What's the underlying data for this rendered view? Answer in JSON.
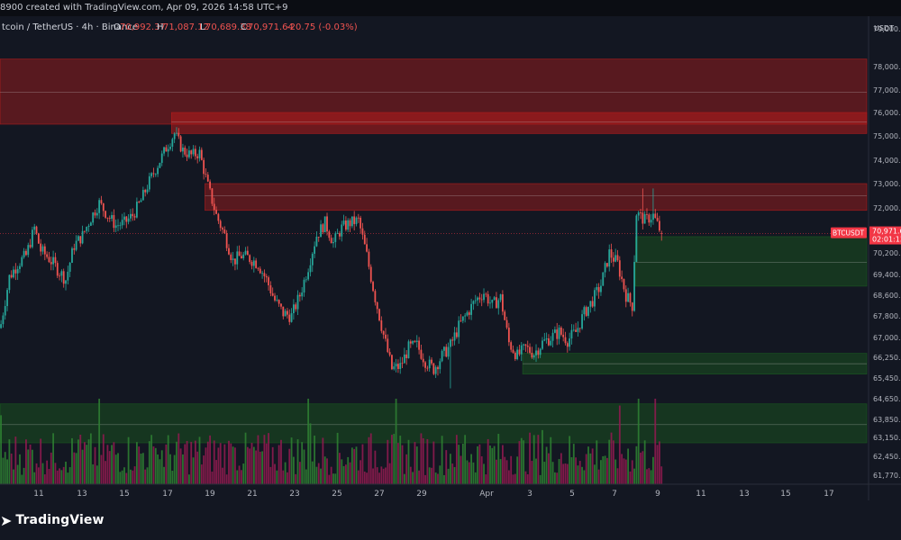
{
  "header": {
    "caption": "8900 created with TradingView.com, Apr 09, 2026 14:58 UTC+9"
  },
  "legend": {
    "symbol": "tcoin / TetherUS · 4h · Binance",
    "open_label": "O",
    "open": "70,992.37",
    "high_label": "H",
    "high": "71,087.12",
    "low_label": "L",
    "low": "70,689.38",
    "close_label": "C",
    "close": "70,971.64",
    "change": "-20.75 (-0.03%)"
  },
  "footer": {
    "brand": "TradingView"
  },
  "colors": {
    "up": "#26a69a",
    "down": "#ef5350",
    "supply_zone": "#b71c1c",
    "demand_zone": "#1b5e20",
    "background": "#131722",
    "price_tag": "#f23645"
  },
  "chart_data": {
    "type": "candlestick",
    "timeframe": "4h",
    "currency_label": "USDT",
    "ylim": [
      61770,
      79600
    ],
    "y_ticks": [
      {
        "label": "79,000.00",
        "value": 79000
      },
      {
        "label": "78,000.00",
        "value": 78000
      },
      {
        "label": "77,000.00",
        "value": 77000
      },
      {
        "label": "76,000.00",
        "value": 76000
      },
      {
        "label": "75,000.00",
        "value": 75000
      },
      {
        "label": "74,000.00",
        "value": 74000
      },
      {
        "label": "73,000.00",
        "value": 73000
      },
      {
        "label": "72,000.00",
        "value": 72000
      },
      {
        "label": "70,200.00",
        "value": 70200
      },
      {
        "label": "69,400.00",
        "value": 69400
      },
      {
        "label": "68,600.00",
        "value": 68600
      },
      {
        "label": "67,800.00",
        "value": 67800
      },
      {
        "label": "67,000.00",
        "value": 67000
      },
      {
        "label": "66,250.00",
        "value": 66250
      },
      {
        "label": "65,450.00",
        "value": 65450
      },
      {
        "label": "64,650.00",
        "value": 64650
      },
      {
        "label": "63,850.00",
        "value": 63850
      },
      {
        "label": "63,150.00",
        "value": 63150
      },
      {
        "label": "62,450.00",
        "value": 62450
      },
      {
        "label": "61,770.00",
        "value": 61770
      }
    ],
    "x_ticks": [
      "11",
      "13",
      "15",
      "17",
      "19",
      "21",
      "23",
      "25",
      "27",
      "29",
      "Apr",
      "3",
      "5",
      "7",
      "9",
      "11",
      "13",
      "15",
      "17"
    ],
    "last_price": {
      "symbol": "BTCUSDT",
      "price": "70,971.64",
      "countdown": "02:01:13",
      "value": 70971.64
    },
    "zones": [
      {
        "kind": "supply",
        "start_bar": 0,
        "top": 78200,
        "bottom": 75500,
        "mid": 76900
      },
      {
        "kind": "supply",
        "start_bar": 82,
        "top": 76000,
        "bottom": 75100,
        "mid": 75600
      },
      {
        "kind": "supply",
        "start_bar": 98,
        "top": 73000,
        "bottom": 71900,
        "mid": 72500
      },
      {
        "kind": "demand",
        "start_bar": 304,
        "top": 70850,
        "bottom": 68950,
        "mid": 69850
      },
      {
        "kind": "demand",
        "start_bar": 250,
        "top": 66400,
        "bottom": 65600,
        "mid": 66000
      },
      {
        "kind": "demand",
        "start_bar": 0,
        "top": 64450,
        "bottom": 62950,
        "mid": 63650
      }
    ],
    "ohlc_path": [
      [
        0,
        67500
      ],
      [
        4,
        69300
      ],
      [
        8,
        69800
      ],
      [
        12,
        70100
      ],
      [
        16,
        71200
      ],
      [
        19,
        70300
      ],
      [
        23,
        70000
      ],
      [
        27,
        69600
      ],
      [
        31,
        69200
      ],
      [
        35,
        70500
      ],
      [
        39,
        70900
      ],
      [
        43,
        71600
      ],
      [
        47,
        72200
      ],
      [
        51,
        71700
      ],
      [
        55,
        71300
      ],
      [
        59,
        71400
      ],
      [
        63,
        71700
      ],
      [
        67,
        72300
      ],
      [
        71,
        73100
      ],
      [
        75,
        73800
      ],
      [
        79,
        74500
      ],
      [
        83,
        75100
      ],
      [
        87,
        74400
      ],
      [
        91,
        74200
      ],
      [
        95,
        74300
      ],
      [
        99,
        72900
      ],
      [
        103,
        71700
      ],
      [
        107,
        70900
      ],
      [
        111,
        69900
      ],
      [
        115,
        70100
      ],
      [
        119,
        70000
      ],
      [
        123,
        69800
      ],
      [
        127,
        69200
      ],
      [
        131,
        68400
      ],
      [
        135,
        67900
      ],
      [
        139,
        67800
      ],
      [
        143,
        68600
      ],
      [
        147,
        69700
      ],
      [
        151,
        70900
      ],
      [
        155,
        71400
      ],
      [
        159,
        70600
      ],
      [
        163,
        71200
      ],
      [
        167,
        71400
      ],
      [
        171,
        71500
      ],
      [
        175,
        70100
      ],
      [
        179,
        68500
      ],
      [
        183,
        67100
      ],
      [
        187,
        65800
      ],
      [
        191,
        65900
      ],
      [
        195,
        66600
      ],
      [
        199,
        66700
      ],
      [
        203,
        66100
      ],
      [
        207,
        65800
      ],
      [
        211,
        66300
      ],
      [
        215,
        66700
      ],
      [
        219,
        67400
      ],
      [
        223,
        67900
      ],
      [
        227,
        68400
      ],
      [
        231,
        68700
      ],
      [
        235,
        68200
      ],
      [
        239,
        68500
      ],
      [
        243,
        66800
      ],
      [
        247,
        66300
      ],
      [
        251,
        66600
      ],
      [
        255,
        66400
      ],
      [
        259,
        66800
      ],
      [
        263,
        67000
      ],
      [
        267,
        67200
      ],
      [
        271,
        66900
      ],
      [
        275,
        67200
      ],
      [
        279,
        67900
      ],
      [
        283,
        68400
      ],
      [
        287,
        69000
      ],
      [
        291,
        70200
      ],
      [
        295,
        69800
      ],
      [
        299,
        68600
      ],
      [
        302,
        68200
      ],
      [
        304,
        71800
      ],
      [
        308,
        71500
      ],
      [
        312,
        71700
      ],
      [
        316,
        70971
      ]
    ],
    "volume_note": "volume histogram at bottom, bars colored by candle direction"
  }
}
